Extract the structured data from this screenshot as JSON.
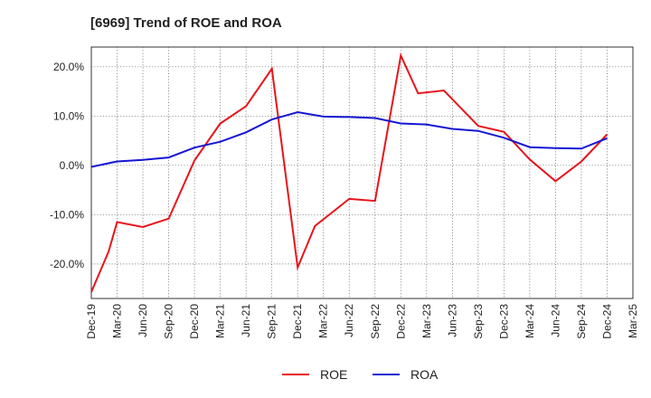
{
  "chart_data": {
    "type": "line",
    "title": "[6969]  Trend of ROE and ROA",
    "xlabel": "",
    "ylabel": "",
    "x": [
      "Dec-19",
      "Mar-20",
      "Jun-20",
      "Sep-20",
      "Dec-20",
      "Mar-21",
      "Jun-21",
      "Sep-21",
      "Dec-21",
      "Mar-22",
      "Jun-22",
      "Sep-22",
      "Dec-22",
      "Mar-23",
      "Jun-23",
      "Sep-23",
      "Dec-23",
      "Mar-24",
      "Jun-24",
      "Sep-24",
      "Dec-24",
      "Mar-25"
    ],
    "ylim": [
      -27,
      24
    ],
    "yticks": [
      {
        "value": 20,
        "label": "20.0%"
      },
      {
        "value": 10,
        "label": "10.0%"
      },
      {
        "value": 0,
        "label": "0.0%"
      },
      {
        "value": -10,
        "label": "-10.0%"
      },
      {
        "value": -20,
        "label": "-20.0%"
      }
    ],
    "grid": "dotted",
    "legend_position": "bottom-center",
    "series": [
      {
        "name": "ROE",
        "color": "#e8141b",
        "points": [
          {
            "x": 0,
            "y": -25.7
          },
          {
            "x": 0.67,
            "y": -17.5
          },
          {
            "x": 1,
            "y": -11.5
          },
          {
            "x": 2,
            "y": -12.5
          },
          {
            "x": 3,
            "y": -10.8
          },
          {
            "x": 4,
            "y": 1.0
          },
          {
            "x": 5,
            "y": 8.5
          },
          {
            "x": 6,
            "y": 12.0
          },
          {
            "x": 7,
            "y": 19.6
          },
          {
            "x": 8,
            "y": -20.7
          },
          {
            "x": 8.67,
            "y": -12.3
          },
          {
            "x": 10,
            "y": -6.8
          },
          {
            "x": 11,
            "y": -7.2
          },
          {
            "x": 12,
            "y": 22.3
          },
          {
            "x": 12.67,
            "y": 14.6
          },
          {
            "x": 13.67,
            "y": 15.2
          },
          {
            "x": 15,
            "y": 8.0
          },
          {
            "x": 16,
            "y": 6.8
          },
          {
            "x": 17,
            "y": 1.2
          },
          {
            "x": 18,
            "y": -3.2
          },
          {
            "x": 19,
            "y": 0.8
          },
          {
            "x": 20,
            "y": 6.3
          }
        ]
      },
      {
        "name": "ROA",
        "color": "#1616d4",
        "points": [
          {
            "x": 0,
            "y": -0.3
          },
          {
            "x": 1,
            "y": 0.8
          },
          {
            "x": 2,
            "y": 1.1
          },
          {
            "x": 3,
            "y": 1.6
          },
          {
            "x": 4,
            "y": 3.6
          },
          {
            "x": 5,
            "y": 4.8
          },
          {
            "x": 6,
            "y": 6.7
          },
          {
            "x": 7,
            "y": 9.3
          },
          {
            "x": 8,
            "y": 10.8
          },
          {
            "x": 9,
            "y": 9.9
          },
          {
            "x": 10,
            "y": 9.8
          },
          {
            "x": 11,
            "y": 9.6
          },
          {
            "x": 12,
            "y": 8.5
          },
          {
            "x": 13,
            "y": 8.3
          },
          {
            "x": 14,
            "y": 7.4
          },
          {
            "x": 15,
            "y": 7.0
          },
          {
            "x": 16,
            "y": 5.6
          },
          {
            "x": 17,
            "y": 3.7
          },
          {
            "x": 18,
            "y": 3.5
          },
          {
            "x": 19,
            "y": 3.4
          },
          {
            "x": 20,
            "y": 5.5
          }
        ]
      }
    ]
  }
}
